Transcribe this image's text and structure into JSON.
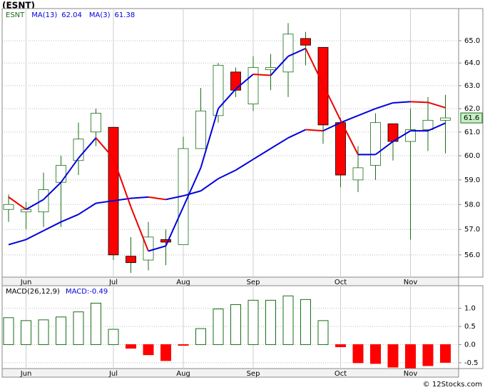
{
  "title": "(ESNT)",
  "footer": "© 12Stocks.com",
  "chart_data": [
    {
      "type": "candlestick",
      "ticker": "ESNT",
      "log_scale": true,
      "grid": true,
      "categories": [
        null,
        "Jun",
        null,
        null,
        null,
        null,
        "Jul",
        null,
        null,
        null,
        "Aug",
        null,
        null,
        null,
        "Sep",
        null,
        null,
        null,
        null,
        "Oct",
        null,
        null,
        null,
        "Nov",
        null,
        null
      ],
      "open": [
        57.8,
        57.7,
        57.7,
        58.9,
        59.8,
        61.0,
        61.2,
        55.95,
        55.8,
        56.6,
        56.4,
        60.3,
        61.7,
        63.6,
        62.2,
        63.7,
        63.6,
        65.1,
        64.7,
        61.4,
        59.0,
        59.6,
        61.35,
        60.6,
        61.1,
        61.5
      ],
      "high": [
        58.4,
        58.1,
        59.3,
        60.0,
        61.4,
        62.0,
        61.2,
        56.7,
        57.3,
        57.0,
        60.8,
        62.9,
        64.0,
        63.8,
        64.3,
        64.4,
        65.8,
        65.4,
        64.7,
        61.6,
        60.4,
        61.8,
        61.35,
        62.0,
        62.5,
        62.6
      ],
      "low": [
        57.3,
        57.0,
        57.1,
        57.1,
        59.2,
        60.4,
        55.8,
        55.3,
        55.4,
        55.6,
        56.4,
        60.3,
        61.4,
        62.5,
        61.9,
        62.8,
        62.5,
        63.9,
        60.5,
        58.7,
        58.5,
        59.0,
        59.8,
        56.6,
        60.2,
        60.1
      ],
      "close": [
        58.0,
        57.8,
        58.6,
        59.6,
        60.7,
        61.8,
        56.0,
        55.7,
        56.7,
        56.5,
        60.3,
        61.9,
        63.9,
        62.8,
        63.8,
        63.8,
        65.3,
        64.8,
        61.3,
        59.2,
        59.5,
        61.4,
        60.6,
        61.1,
        61.5,
        61.6
      ],
      "up_color": "#1a6e1a",
      "down_color": "#ff0000",
      "series": [
        {
          "name": "MA(13)",
          "last": 62.04,
          "values": [
            56.4,
            56.6,
            56.95,
            57.3,
            57.6,
            58.05,
            58.15,
            58.25,
            58.3,
            58.2,
            58.35,
            58.55,
            59.05,
            59.4,
            59.85,
            60.3,
            60.75,
            61.1,
            61.05,
            61.4,
            61.7,
            62.0,
            62.25,
            62.3,
            62.27,
            62.04
          ]
        },
        {
          "name": "MA(3)",
          "last": 61.38,
          "values": [
            58.3,
            57.8,
            58.2,
            58.9,
            59.9,
            60.75,
            59.9,
            57.9,
            56.15,
            56.35,
            57.9,
            59.5,
            62.0,
            62.85,
            63.5,
            63.45,
            64.3,
            64.65,
            63.05,
            61.5,
            60.05,
            60.05,
            60.6,
            61.05,
            61.05,
            61.38
          ]
        }
      ],
      "rising_color": "#0000dd",
      "falling_color": "#ee0000",
      "last_price": 61.6,
      "ylim": [
        55.14,
        66.47
      ],
      "yticks": [
        {
          "value": 56,
          "label": "56.0"
        },
        {
          "value": 57,
          "label": "57.0"
        },
        {
          "value": 58,
          "label": "58.0"
        },
        {
          "value": 59,
          "label": "59.0"
        },
        {
          "value": 60,
          "label": "60.0"
        },
        {
          "value": 61,
          "label": "61.0"
        },
        {
          "value": 62,
          "label": "62.0"
        },
        {
          "value": 63,
          "label": "63.0"
        },
        {
          "value": 64,
          "label": "64.0"
        },
        {
          "value": 65,
          "label": "65.0"
        }
      ]
    },
    {
      "type": "bar",
      "title": "MACD(26,12,9)",
      "name": "MACD:",
      "last": -0.49,
      "grid": true,
      "categories": [
        null,
        "Jun",
        null,
        null,
        null,
        null,
        "Jul",
        null,
        null,
        null,
        "Aug",
        null,
        null,
        null,
        "Sep",
        null,
        null,
        null,
        null,
        "Oct",
        null,
        null,
        null,
        "Nov",
        null,
        null
      ],
      "values": [
        0.74,
        0.66,
        0.68,
        0.76,
        0.9,
        1.14,
        0.42,
        -0.1,
        -0.28,
        -0.44,
        -0.02,
        0.44,
        0.98,
        1.1,
        1.22,
        1.22,
        1.34,
        1.24,
        0.66,
        -0.06,
        -0.5,
        -0.52,
        -0.62,
        -0.64,
        -0.58,
        -0.49
      ],
      "up_color": "#1a6e1a",
      "down_color": "#ff0000",
      "ylim": [
        -0.66,
        1.62
      ],
      "yticks": [
        {
          "value": -0.5,
          "label": "-0.5"
        },
        {
          "value": 0,
          "label": "0.0"
        },
        {
          "value": 0.5,
          "label": "0.5"
        },
        {
          "value": 1,
          "label": "1.0"
        }
      ]
    }
  ]
}
